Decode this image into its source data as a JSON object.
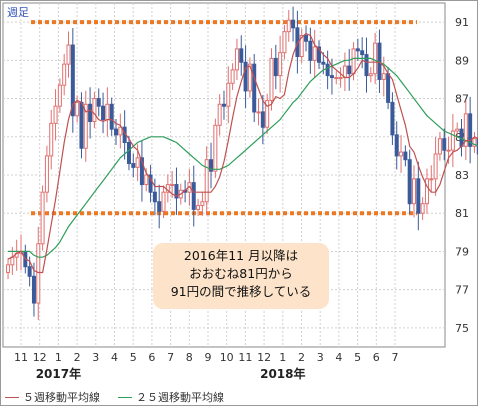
{
  "period_label": "週足",
  "annotation": {
    "lines": [
      "2016年11 月以降は",
      "おおむね81円から",
      "91円の間で推移している"
    ]
  },
  "legend": {
    "items": [
      {
        "label": "５週移動平均線",
        "color": "#c05050"
      },
      {
        "label": "２５週移動平均線",
        "color": "#2e9e5a"
      }
    ]
  },
  "colors": {
    "up": "#e07070",
    "down": "#3a5a9a",
    "ma5": "#c05050",
    "ma25": "#2e9e5a",
    "level_line": "#ee7722",
    "grid": "#d0d0d0"
  },
  "chart_data": {
    "type": "candlestick",
    "ylim": [
      74,
      92
    ],
    "y_ticks": [
      75,
      77,
      79,
      81,
      83,
      85,
      87,
      89,
      91
    ],
    "reference_lines": [
      81,
      91
    ],
    "x_ticks": [
      "11",
      "12",
      "1",
      "2",
      "3",
      "4",
      "5",
      "6",
      "7",
      "8",
      "9",
      "10",
      "11",
      "12",
      "1",
      "2",
      "3",
      "4",
      "5",
      "6",
      "7"
    ],
    "year_labels": [
      {
        "label": "2017年",
        "at_tick": 2
      },
      {
        "label": "2018年",
        "at_tick": 14
      }
    ],
    "weeks_per_tick": 4.33,
    "close": [
      78.3,
      78.7,
      78.9,
      79.0,
      78.2,
      77.7,
      76.3,
      79.4,
      82.1,
      84.0,
      85.7,
      86.6,
      87.7,
      88.8,
      89.8,
      86.1,
      86.8,
      84.4,
      86.7,
      85.8,
      87.0,
      86.6,
      85.9,
      86.7,
      85.4,
      85.1,
      85.5,
      84.7,
      83.6,
      83.4,
      83.9,
      82.5,
      83.0,
      82.1,
      81.6,
      81.1,
      82.1,
      82.5,
      82.5,
      81.8,
      82.2,
      82.1,
      82.6,
      81.2,
      81.4,
      81.6,
      83.8,
      83.2,
      85.6,
      86.7,
      86.6,
      87.8,
      88.5,
      89.6,
      88.9,
      87.4,
      88.8,
      86.3,
      86.3,
      85.5,
      86.9,
      89.1,
      88.2,
      89.4,
      90.5,
      91.1,
      90.7,
      89.2,
      90.3,
      90.0,
      89.0,
      89.7,
      88.9,
      88.8,
      88.2,
      88.1,
      88.1,
      88.1,
      88.7,
      88.3,
      89.6,
      89.5,
      89.3,
      88.2,
      88.3,
      89.9,
      88.0,
      88.3,
      86.8,
      85.1,
      84.0,
      84.2,
      83.8,
      81.5,
      82.8,
      81.0,
      81.5,
      82.8,
      82.8,
      84.1,
      84.9,
      84.3,
      84.3,
      85.3,
      85.4,
      84.5,
      86.2,
      84.5,
      84.9,
      84.1,
      84.5,
      83.1,
      83.2,
      82.8,
      84.8,
      84.6,
      84.7,
      84.4,
      84.1,
      85.7,
      85.0,
      84.5
    ],
    "ma5": [
      78.6,
      78.7,
      78.9,
      79.0,
      78.6,
      78.5,
      78.0,
      77.9,
      77.9,
      79.1,
      80.4,
      81.7,
      83.2,
      84.7,
      85.9,
      86.7,
      86.9,
      86.8,
      86.3,
      86.4,
      86.2,
      85.9,
      85.8,
      85.9,
      85.9,
      85.7,
      85.6,
      85.2,
      84.9,
      84.5,
      84.3,
      83.7,
      83.1,
      82.8,
      82.4,
      82.4,
      82.4,
      82.2,
      82.0,
      81.9,
      82.0,
      82.2,
      82.4,
      82.1,
      82.1,
      82.1,
      82.1,
      82.1,
      82.4,
      82.9,
      83.7,
      84.8,
      86.0,
      87.1,
      87.9,
      88.6,
      88.7,
      88.1,
      87.5,
      86.9,
      86.6,
      86.7,
      87.1,
      87.0,
      87.2,
      88.4,
      89.3,
      89.9,
      90.2,
      90.4,
      90.3,
      89.8,
      89.6,
      89.3,
      89.1,
      88.7,
      88.5,
      88.3,
      88.1,
      88.1,
      88.3,
      88.6,
      89.0,
      88.9,
      88.9,
      88.9,
      88.9,
      88.7,
      88.3,
      88.0,
      87.2,
      86.4,
      85.6,
      84.5,
      84.2,
      83.5,
      82.9,
      82.4,
      82.1,
      82.1,
      82.5,
      83.2,
      83.9,
      84.2,
      84.3,
      84.5,
      84.8,
      84.8,
      85.0,
      84.9,
      84.8,
      84.5,
      84.4,
      83.8,
      83.8,
      83.7,
      83.8,
      83.9,
      84.0,
      84.5,
      84.7,
      84.7
    ],
    "ma25": [
      79.0,
      79.0,
      79.0,
      79.0,
      79.0,
      79.0,
      78.8,
      78.7,
      78.7,
      78.8,
      79.0,
      79.2,
      79.5,
      79.9,
      80.3,
      80.6,
      80.9,
      81.2,
      81.5,
      81.8,
      82.1,
      82.4,
      82.7,
      83.0,
      83.3,
      83.6,
      83.9,
      84.1,
      84.3,
      84.5,
      84.7,
      84.8,
      84.9,
      85.0,
      85.0,
      85.0,
      85.0,
      84.9,
      84.8,
      84.7,
      84.5,
      84.3,
      84.1,
      83.9,
      83.7,
      83.5,
      83.4,
      83.3,
      83.3,
      83.3,
      83.4,
      83.5,
      83.7,
      83.9,
      84.1,
      84.3,
      84.5,
      84.7,
      84.9,
      85.1,
      85.3,
      85.5,
      85.7,
      85.9,
      86.2,
      86.5,
      86.8,
      87.0,
      87.3,
      87.6,
      87.9,
      88.1,
      88.3,
      88.5,
      88.6,
      88.7,
      88.8,
      88.9,
      89.0,
      89.0,
      89.1,
      89.1,
      89.1,
      89.1,
      89.1,
      89.0,
      88.9,
      88.8,
      88.6,
      88.4,
      88.2,
      87.9,
      87.6,
      87.3,
      87.0,
      86.7,
      86.4,
      86.1,
      85.9,
      85.7,
      85.5,
      85.3,
      85.2,
      85.1,
      85.0,
      84.9,
      84.8,
      84.7,
      84.6,
      84.5,
      84.5,
      84.4,
      84.4,
      84.4,
      84.4,
      84.4,
      84.4,
      84.3,
      84.3,
      84.3,
      84.3,
      84.3
    ]
  }
}
